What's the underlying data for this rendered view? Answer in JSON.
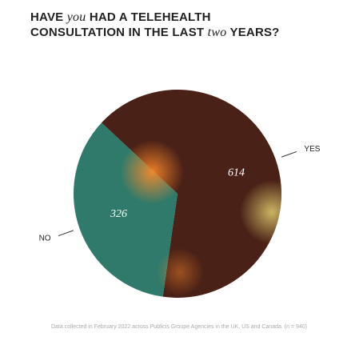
{
  "chart_data": {
    "type": "pie",
    "title_parts": [
      "HAVE",
      "you",
      "HAD A TELEHEALTH",
      "CONSULTATION IN THE LAST",
      "two",
      "YEARS?"
    ],
    "categories": [
      "YES",
      "NO"
    ],
    "values": [
      614,
      326
    ],
    "colors": [
      "#4a2117",
      "#2f7a6a"
    ],
    "footnote": "Data collected in February 2022 across Publicis Groupe Agencies in the UK, US and Canada. (n = 940)"
  }
}
